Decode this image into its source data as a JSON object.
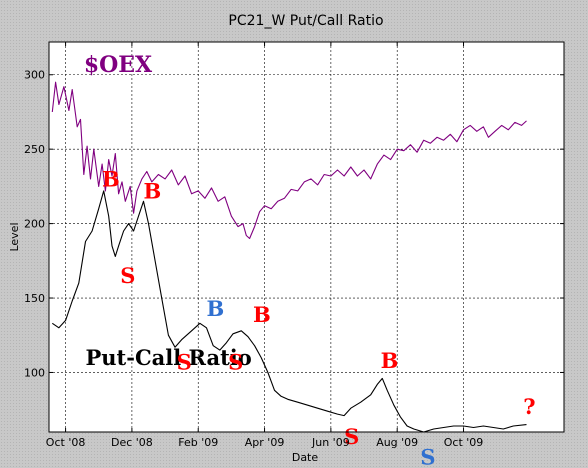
{
  "chart_data": {
    "type": "line",
    "title": "PC21_W Put/Call Ratio",
    "xlabel": "Date",
    "ylabel": "Level",
    "ylim": [
      60,
      322
    ],
    "grid": true,
    "x_ticks": [
      "Oct '08",
      "Dec '08",
      "Feb '09",
      "Apr '09",
      "Jun '09",
      "Aug '09",
      "Oct '09"
    ],
    "x_tick_positions": [
      0.5,
      2.5,
      4.5,
      6.5,
      8.5,
      10.5,
      12.5
    ],
    "y_ticks": [
      100,
      150,
      200,
      250,
      300
    ],
    "xlim": [
      0,
      15.53
    ],
    "series": [
      {
        "name": "$OEX",
        "color": "#800080",
        "points": [
          [
            0.1,
            275
          ],
          [
            0.2,
            295
          ],
          [
            0.3,
            280
          ],
          [
            0.45,
            292
          ],
          [
            0.6,
            276
          ],
          [
            0.7,
            290
          ],
          [
            0.85,
            265
          ],
          [
            0.95,
            270
          ],
          [
            1.05,
            233
          ],
          [
            1.15,
            252
          ],
          [
            1.25,
            230
          ],
          [
            1.35,
            250
          ],
          [
            1.5,
            225
          ],
          [
            1.6,
            240
          ],
          [
            1.7,
            222
          ],
          [
            1.8,
            243
          ],
          [
            1.9,
            232
          ],
          [
            2.0,
            247
          ],
          [
            2.1,
            220
          ],
          [
            2.2,
            228
          ],
          [
            2.3,
            215
          ],
          [
            2.45,
            225
          ],
          [
            2.55,
            207
          ],
          [
            2.65,
            222
          ],
          [
            2.8,
            230
          ],
          [
            2.95,
            235
          ],
          [
            3.1,
            228
          ],
          [
            3.3,
            233
          ],
          [
            3.5,
            230
          ],
          [
            3.7,
            236
          ],
          [
            3.9,
            226
          ],
          [
            4.1,
            232
          ],
          [
            4.3,
            220
          ],
          [
            4.5,
            222
          ],
          [
            4.7,
            217
          ],
          [
            4.9,
            224
          ],
          [
            5.1,
            215
          ],
          [
            5.3,
            218
          ],
          [
            5.5,
            205
          ],
          [
            5.7,
            198
          ],
          [
            5.85,
            200
          ],
          [
            5.95,
            192
          ],
          [
            6.05,
            190
          ],
          [
            6.2,
            198
          ],
          [
            6.35,
            208
          ],
          [
            6.5,
            212
          ],
          [
            6.7,
            210
          ],
          [
            6.9,
            215
          ],
          [
            7.1,
            217
          ],
          [
            7.3,
            223
          ],
          [
            7.5,
            222
          ],
          [
            7.7,
            228
          ],
          [
            7.9,
            230
          ],
          [
            8.1,
            226
          ],
          [
            8.3,
            233
          ],
          [
            8.5,
            232
          ],
          [
            8.7,
            236
          ],
          [
            8.9,
            232
          ],
          [
            9.1,
            238
          ],
          [
            9.3,
            232
          ],
          [
            9.5,
            236
          ],
          [
            9.7,
            230
          ],
          [
            9.9,
            240
          ],
          [
            10.1,
            246
          ],
          [
            10.3,
            243
          ],
          [
            10.5,
            250
          ],
          [
            10.7,
            249
          ],
          [
            10.9,
            253
          ],
          [
            11.1,
            248
          ],
          [
            11.3,
            256
          ],
          [
            11.5,
            254
          ],
          [
            11.7,
            258
          ],
          [
            11.9,
            256
          ],
          [
            12.1,
            260
          ],
          [
            12.3,
            255
          ],
          [
            12.5,
            263
          ],
          [
            12.7,
            266
          ],
          [
            12.9,
            262
          ],
          [
            13.1,
            265
          ],
          [
            13.25,
            258
          ],
          [
            13.45,
            262
          ],
          [
            13.65,
            266
          ],
          [
            13.85,
            263
          ],
          [
            14.05,
            268
          ],
          [
            14.25,
            266
          ],
          [
            14.4,
            269
          ]
        ]
      },
      {
        "name": "Put-Call Ratio",
        "color": "#000000",
        "points": [
          [
            0.1,
            133
          ],
          [
            0.3,
            130
          ],
          [
            0.5,
            135
          ],
          [
            0.7,
            148
          ],
          [
            0.9,
            160
          ],
          [
            1.1,
            188
          ],
          [
            1.3,
            195
          ],
          [
            1.5,
            210
          ],
          [
            1.65,
            222
          ],
          [
            1.8,
            205
          ],
          [
            1.9,
            185
          ],
          [
            2.0,
            178
          ],
          [
            2.1,
            185
          ],
          [
            2.25,
            195
          ],
          [
            2.4,
            200
          ],
          [
            2.55,
            195
          ],
          [
            2.7,
            205
          ],
          [
            2.85,
            215
          ],
          [
            3.0,
            200
          ],
          [
            3.2,
            175
          ],
          [
            3.4,
            150
          ],
          [
            3.6,
            125
          ],
          [
            3.8,
            117
          ],
          [
            4.0,
            122
          ],
          [
            4.3,
            128
          ],
          [
            4.55,
            133
          ],
          [
            4.75,
            130
          ],
          [
            4.95,
            118
          ],
          [
            5.15,
            115
          ],
          [
            5.35,
            120
          ],
          [
            5.55,
            126
          ],
          [
            5.8,
            128
          ],
          [
            6.0,
            124
          ],
          [
            6.2,
            118
          ],
          [
            6.4,
            110
          ],
          [
            6.6,
            100
          ],
          [
            6.8,
            88
          ],
          [
            7.0,
            84
          ],
          [
            7.2,
            82
          ],
          [
            7.5,
            80
          ],
          [
            7.8,
            78
          ],
          [
            8.1,
            76
          ],
          [
            8.4,
            74
          ],
          [
            8.7,
            72
          ],
          [
            8.9,
            71
          ],
          [
            9.1,
            76
          ],
          [
            9.4,
            80
          ],
          [
            9.7,
            85
          ],
          [
            9.9,
            92
          ],
          [
            10.05,
            96
          ],
          [
            10.2,
            88
          ],
          [
            10.4,
            78
          ],
          [
            10.6,
            70
          ],
          [
            10.8,
            64
          ],
          [
            11.0,
            62
          ],
          [
            11.3,
            60
          ],
          [
            11.6,
            62
          ],
          [
            11.9,
            63
          ],
          [
            12.2,
            64
          ],
          [
            12.5,
            64
          ],
          [
            12.8,
            63
          ],
          [
            13.1,
            64
          ],
          [
            13.4,
            63
          ],
          [
            13.7,
            62
          ],
          [
            14.0,
            64
          ],
          [
            14.4,
            65
          ]
        ]
      }
    ],
    "annotations": [
      {
        "text": "$OEX",
        "x": 1.05,
        "y": 302,
        "color": "#800080",
        "size": 22
      },
      {
        "text": "Put-Call Ratio",
        "x": 1.1,
        "y": 105,
        "color": "#000000",
        "size": 21
      },
      {
        "text": "B",
        "x": 1.6,
        "y": 225,
        "color": "#ff0000",
        "size": 21
      },
      {
        "text": "B",
        "x": 2.85,
        "y": 217,
        "color": "#ff0000",
        "size": 21
      },
      {
        "text": "S",
        "x": 2.15,
        "y": 160,
        "color": "#ff0000",
        "size": 21
      },
      {
        "text": "S",
        "x": 3.85,
        "y": 102,
        "color": "#ff0000",
        "size": 21
      },
      {
        "text": "B",
        "x": 4.75,
        "y": 138,
        "color": "#3070d0",
        "size": 21
      },
      {
        "text": "S",
        "x": 5.4,
        "y": 102,
        "color": "#ff0000",
        "size": 21
      },
      {
        "text": "B",
        "x": 6.15,
        "y": 134,
        "color": "#ff0000",
        "size": 21
      },
      {
        "text": "S",
        "x": 8.9,
        "y": 52,
        "color": "#ff0000",
        "size": 21
      },
      {
        "text": "B",
        "x": 10.0,
        "y": 103,
        "color": "#ff0000",
        "size": 21
      },
      {
        "text": "S",
        "x": 11.2,
        "y": 38,
        "color": "#3070d0",
        "size": 21
      },
      {
        "text": "?",
        "x": 14.3,
        "y": 72,
        "color": "#ff0000",
        "size": 21
      }
    ]
  }
}
